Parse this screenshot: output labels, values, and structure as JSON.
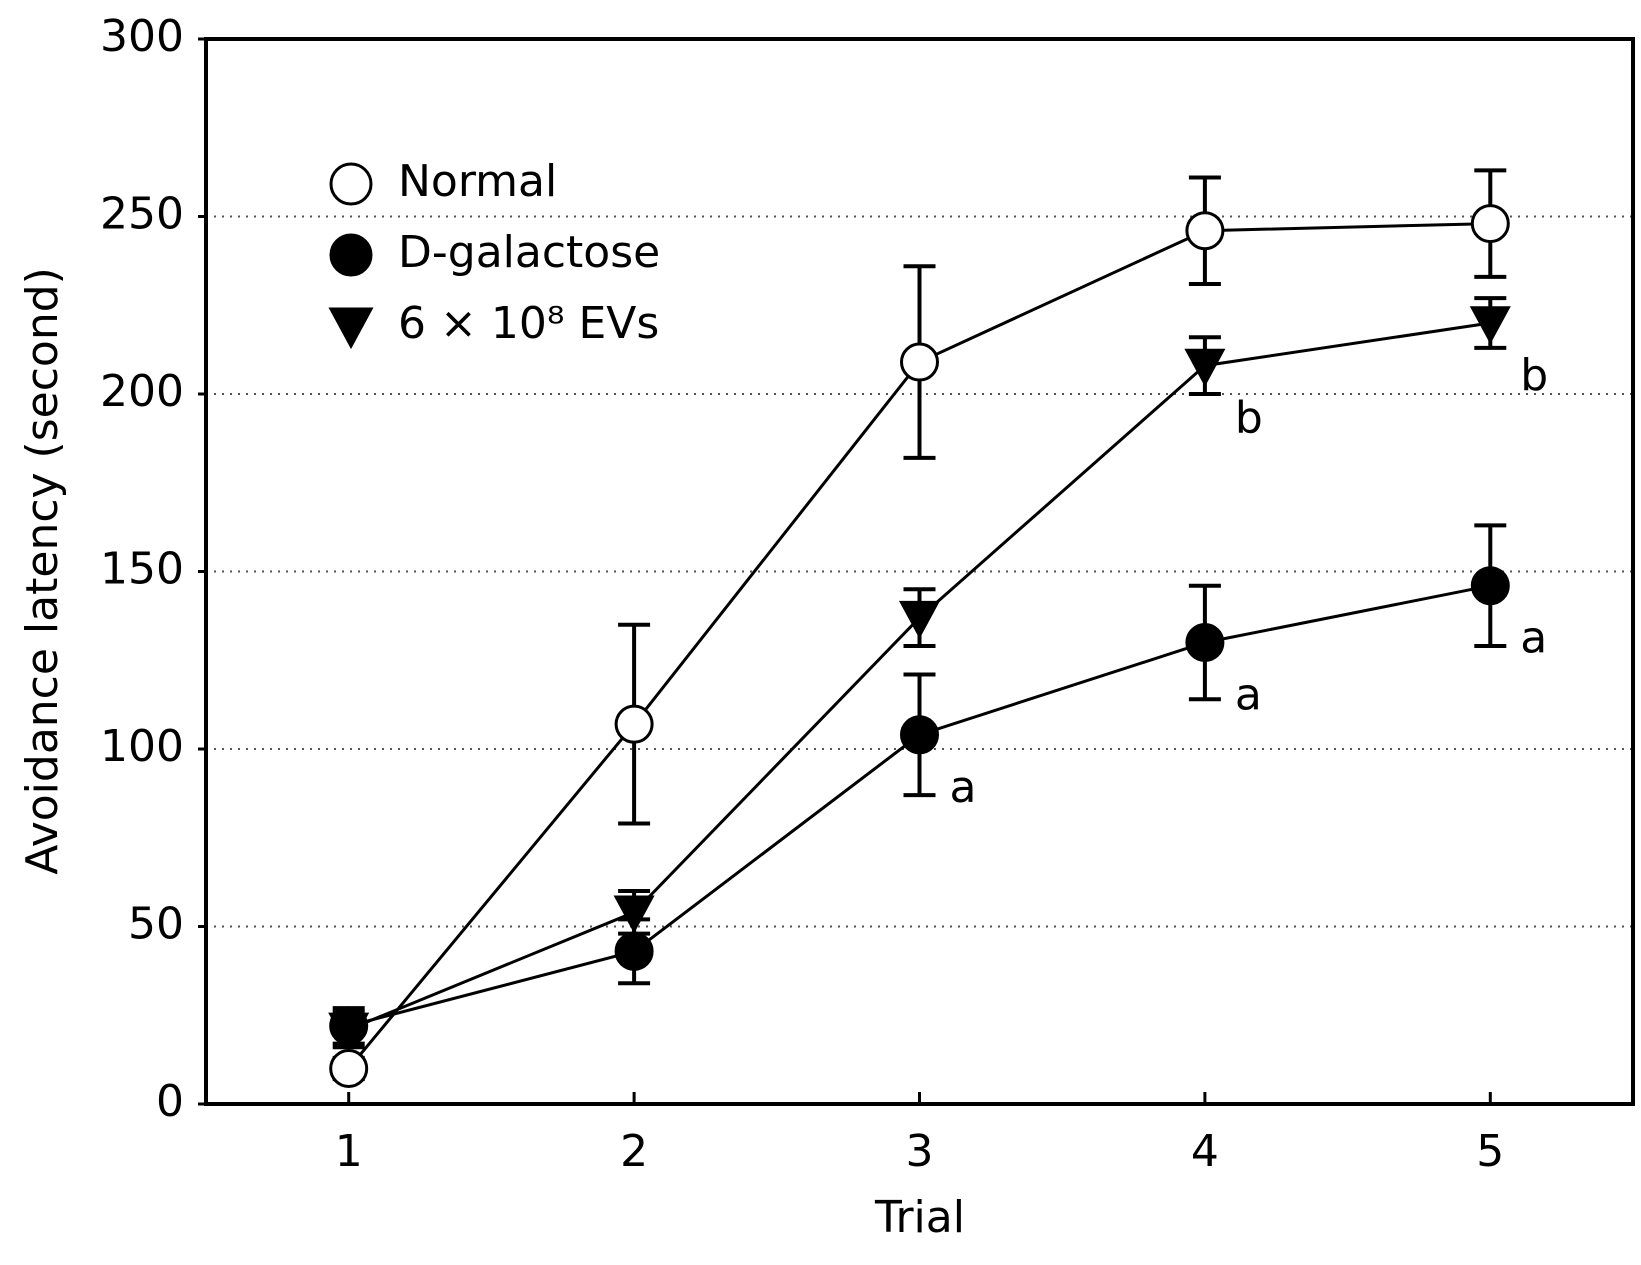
{
  "chart_data": {
    "type": "line",
    "x_label": "Trial",
    "y_label": "Avoidance latency (second)",
    "x": [
      1,
      2,
      3,
      4,
      5
    ],
    "xlim": [
      0.5,
      5.5
    ],
    "xticks": [
      1,
      2,
      3,
      4,
      5
    ],
    "ylim": [
      0,
      300
    ],
    "yticks": [
      0,
      50,
      100,
      150,
      200,
      250,
      300
    ],
    "grid": true,
    "legend": "upper left",
    "series": [
      {
        "name": "Normal",
        "color": "#000000",
        "marker": "circle",
        "marker_fill": "#ffffff",
        "values": [
          10,
          107,
          209,
          246,
          248
        ],
        "errors": [
          3,
          28,
          27,
          15,
          15
        ],
        "point_labels": [
          null,
          null,
          null,
          null,
          null
        ]
      },
      {
        "name": "D-galactose",
        "color": "#000000",
        "marker": "circle",
        "marker_fill": "#000000",
        "values": [
          22,
          43,
          104,
          130,
          146
        ],
        "errors": [
          5,
          9,
          17,
          16,
          17
        ],
        "point_labels": [
          null,
          null,
          "a",
          "a",
          "a"
        ]
      },
      {
        "name": "6 × 10⁸ EVs",
        "color": "#000000",
        "marker": "triangle-down",
        "marker_fill": "#000000",
        "values": [
          21,
          54,
          137,
          208,
          220
        ],
        "errors": [
          5,
          6,
          8,
          8,
          7
        ],
        "point_labels": [
          null,
          null,
          null,
          "b",
          "b"
        ]
      }
    ]
  }
}
